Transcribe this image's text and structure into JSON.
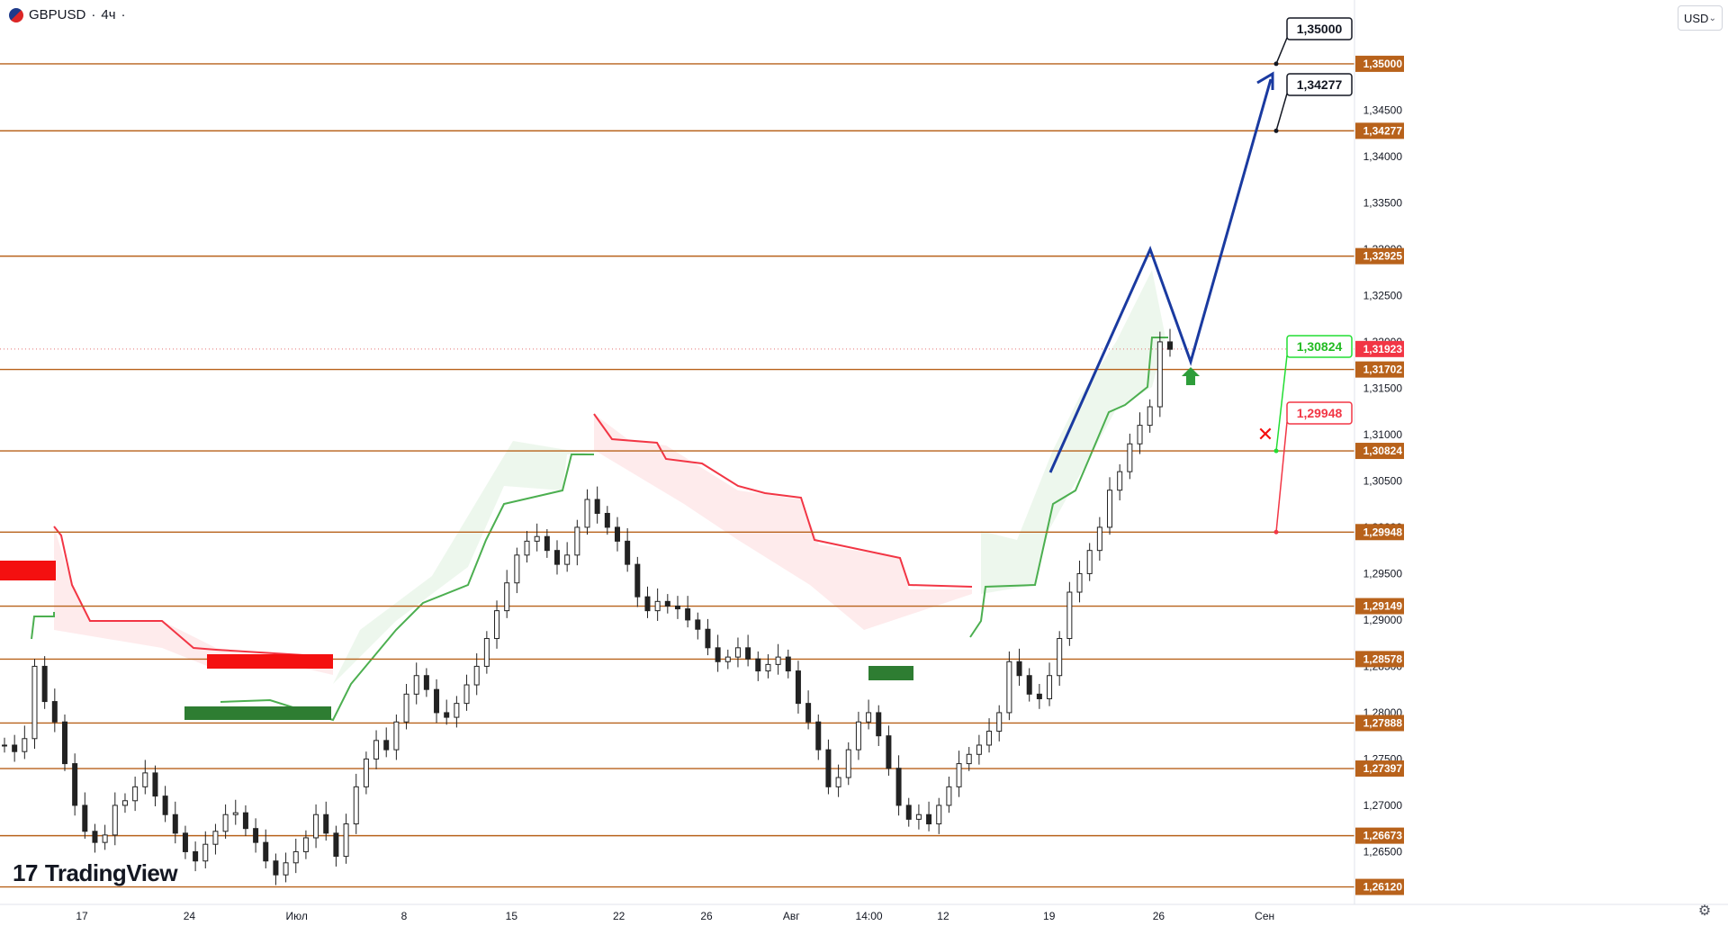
{
  "header": {
    "symbol": "GBPUSD",
    "sep1": "·",
    "timeframe": "4ч",
    "sep2": "·"
  },
  "currency": {
    "label": "USD",
    "chevron": "chevron-down-icon"
  },
  "logo": {
    "text": "TradingView",
    "mark": "17"
  },
  "settings": {
    "icon": "gear-icon",
    "glyph": "⚙"
  },
  "chart_data": {
    "type": "candlestick",
    "symbol": "GBPUSD",
    "interval": "4ч",
    "ylim": [
      1.2598,
      1.353
    ],
    "y_ticks": [
      "1,26500",
      "1,27000",
      "1,27500",
      "1,28000",
      "1,28500",
      "1,29000",
      "1,29500",
      "1,30000",
      "1,30500",
      "1,31000",
      "1,31500",
      "1,32000",
      "1,32500",
      "1,33000",
      "1,33500",
      "1,34000",
      "1,34500",
      "1,35000"
    ],
    "x_ticks": [
      "17",
      "24",
      "Июл",
      "8",
      "15",
      "22",
      "26",
      "Авг",
      "14:00",
      "12",
      "19",
      "26",
      "Сен"
    ],
    "levels": [
      1.35,
      1.34277,
      1.32925,
      1.31702,
      1.30824,
      1.29948,
      1.29149,
      1.28578,
      1.27888,
      1.27397,
      1.26673,
      1.2612
    ],
    "level_labels": [
      "1,35000",
      "1,34277",
      "1,32925",
      "1,31702",
      "1,30824",
      "1,29948",
      "1,29149",
      "1,28578",
      "1,27888",
      "1,27397",
      "1,26673",
      "1,26120"
    ],
    "current_price": 1.31923,
    "current_price_label": "1,31923",
    "callouts": [
      {
        "label": "1,35000",
        "value": 1.35,
        "kind": "target"
      },
      {
        "label": "1,34277",
        "value": 1.34277,
        "kind": "target"
      },
      {
        "label": "1,30824",
        "value": 1.30824,
        "kind": "entry"
      },
      {
        "label": "1,29948",
        "value": 1.29948,
        "kind": "stop"
      }
    ],
    "forecast_path": [
      [
        1.2937,
        19.0
      ],
      [
        1.323,
        26.0
      ],
      [
        1.30824,
        28.4
      ],
      [
        1.346,
        33.0
      ]
    ],
    "price_path": [
      1.2765,
      1.2758,
      1.2772,
      1.285,
      1.2812,
      1.279,
      1.2745,
      1.27,
      1.2672,
      1.266,
      1.2668,
      1.27,
      1.2705,
      1.272,
      1.2735,
      1.271,
      1.269,
      1.267,
      1.265,
      1.264,
      1.2658,
      1.2672,
      1.269,
      1.2692,
      1.2675,
      1.266,
      1.264,
      1.2625,
      1.2638,
      1.265,
      1.2665,
      1.269,
      1.267,
      1.2645,
      1.268,
      1.272,
      1.275,
      1.277,
      1.276,
      1.279,
      1.282,
      1.284,
      1.2825,
      1.28,
      1.2795,
      1.281,
      1.283,
      1.285,
      1.288,
      1.291,
      1.294,
      1.297,
      1.2985,
      1.299,
      1.2975,
      1.296,
      1.297,
      1.3,
      1.303,
      1.3015,
      1.3,
      1.2985,
      1.296,
      1.2925,
      1.291,
      1.292,
      1.2915,
      1.2912,
      1.29,
      1.289,
      1.287,
      1.2855,
      1.286,
      1.287,
      1.2858,
      1.2845,
      1.2852,
      1.286,
      1.2845,
      1.281,
      1.279,
      1.276,
      1.272,
      1.273,
      1.276,
      1.279,
      1.28,
      1.2775,
      1.274,
      1.27,
      1.2685,
      1.269,
      1.268,
      1.27,
      1.272,
      1.2745,
      1.2755,
      1.2765,
      1.278,
      1.28,
      1.2855,
      1.284,
      1.282,
      1.2815,
      1.284,
      1.288,
      1.293,
      1.295,
      1.2975,
      1.3,
      1.304,
      1.306,
      1.309,
      1.311,
      1.313,
      1.32,
      1.3192
    ],
    "x_range": [
      12.0,
      37.0
    ],
    "supertrend": {
      "upper_steps": [
        [
          12.0,
          1.276
        ],
        [
          12.8,
          1.2865
        ],
        [
          13.6,
          1.284
        ],
        [
          14.1,
          1.2775
        ],
        [
          15.2,
          1.275
        ],
        [
          16.6,
          1.274
        ],
        [
          17.0,
          1.2705
        ],
        [
          17.6,
          1.2692
        ],
        [
          18.0,
          1.2695
        ],
        [
          18.6,
          1.269
        ],
        [
          18.8,
          1.269
        ]
      ],
      "lower_steps": [
        [
          12.0,
          1.271
        ],
        [
          12.4,
          1.271
        ],
        [
          13.4,
          1.2662
        ],
        [
          18.8,
          1.2655
        ],
        [
          19.4,
          1.2735
        ],
        [
          21.0,
          1.277
        ],
        [
          21.8,
          1.281
        ],
        [
          22.5,
          1.285
        ],
        [
          24.0,
          1.291
        ],
        [
          24.8,
          1.296
        ]
      ]
    },
    "grid": false,
    "legend": "none"
  }
}
